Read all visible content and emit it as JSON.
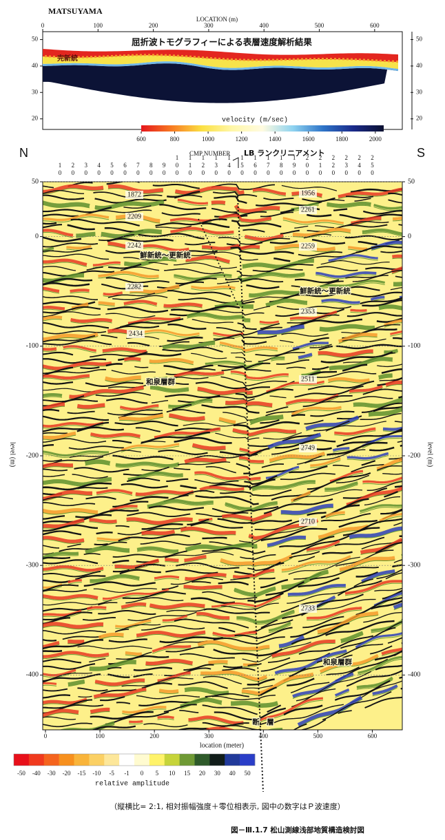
{
  "header": {
    "site": "MATSUYAMA"
  },
  "top_panel": {
    "title": "屈折波トモグラフィーによる表層速度解析結果",
    "x_label": "LOCATION (m)",
    "xlim": [
      0,
      650
    ],
    "xticks": [
      0,
      100,
      200,
      300,
      400,
      500,
      600
    ],
    "ylim": [
      16,
      53
    ],
    "yticks": [
      20,
      30,
      40,
      50
    ],
    "annotation": "完新統",
    "colorbar": {
      "label": "velocity (m/sec)",
      "range": [
        600,
        2050
      ],
      "ticks": [
        600,
        800,
        1000,
        1200,
        1400,
        1600,
        1800,
        2000
      ],
      "colors": [
        "#e5161c",
        "#f77a22",
        "#fbe043",
        "#fff7a8",
        "#fffbe0",
        "#8fd3f0",
        "#2e74c8",
        "#1a2a8a",
        "#0b1030"
      ]
    }
  },
  "bottom_panel": {
    "compass_left": "N",
    "compass_right": "S",
    "cmp_label": "CMP NUMBER",
    "lineament_label": "LB ランクリニアメント",
    "cmp_numbers": [
      "10",
      "20",
      "30",
      "40",
      "50",
      "60",
      "70",
      "80",
      "90",
      "100",
      "110",
      "120",
      "130",
      "140",
      "150",
      "160",
      "170",
      "180",
      "190",
      "200",
      "210",
      "220",
      "230",
      "240",
      "250"
    ],
    "xlim": [
      0,
      650
    ],
    "xticks": [
      0,
      100,
      200,
      300,
      400,
      500,
      600
    ],
    "x_label": "location (meter)",
    "ylim": [
      -450,
      50
    ],
    "yticks": [
      50,
      0,
      -100,
      -200,
      -300,
      -400
    ],
    "y_label": "level (m)",
    "velocity_labels": [
      "1872",
      "2209",
      "2242",
      "2282",
      "2434",
      "1956",
      "2261",
      "2259",
      "2353",
      "2511",
      "2749",
      "2710",
      "2733"
    ],
    "geology_labels": [
      "鮮新統～更新統",
      "鮮新統～更新統",
      "和泉層群",
      "和泉層群",
      "断　層"
    ],
    "amplitude_colorbar": {
      "label": "relative amplitude",
      "ticks": [
        -50,
        -40,
        -30,
        -20,
        -15,
        -10,
        -5,
        -1,
        0,
        5,
        10,
        15,
        20,
        30,
        40,
        50
      ],
      "colors": [
        "#e8101a",
        "#f03a1e",
        "#f5641e",
        "#f7901e",
        "#f9b43a",
        "#fbd064",
        "#fde79a",
        "#ffffff",
        "#fffbd0",
        "#fff36a",
        "#c6d43a",
        "#6f9a35",
        "#2e5a2a",
        "#111d1a",
        "#213a9a",
        "#2a3ec8"
      ]
    }
  },
  "caption": "（縦横比= 2:1, 相対振幅強度＋零位相表示, 図中の数字はＰ波速度）",
  "figure_title": "図－Ⅲ.1.7 松山測線浅部地質構造検討図"
}
